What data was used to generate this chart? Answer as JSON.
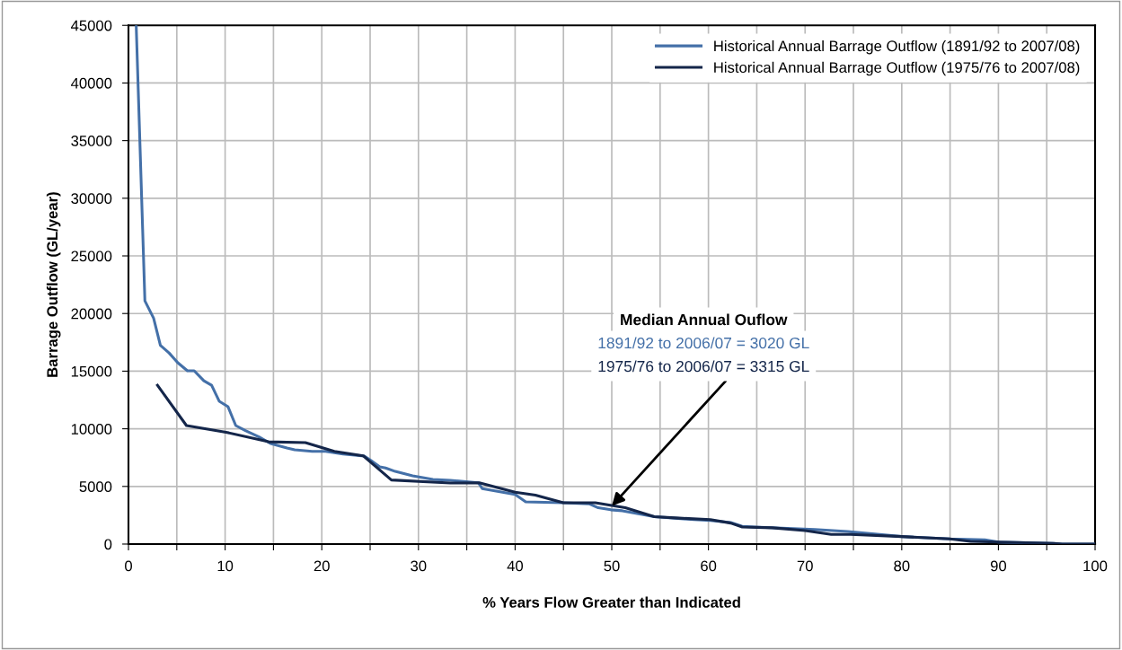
{
  "chart_data": {
    "type": "line",
    "xlabel": "% Years Flow Greater than Indicated",
    "ylabel": "Barrage Outflow (GL/year)",
    "series": [
      {
        "name": "Historical Annual Barrage Outflow (1891/92 to 2007/08)",
        "color": "#4470a8",
        "x": [
          0.8,
          1.7,
          2.6,
          3.3,
          4.2,
          5.1,
          6.1,
          6.8,
          7.8,
          8.6,
          9.4,
          10.3,
          11.1,
          12.1,
          13.5,
          14.7,
          16.4,
          17.2,
          19,
          20.4,
          22.2,
          24.4,
          25.1,
          26,
          26.6,
          27.6,
          29.4,
          31.5,
          33.3,
          36.2,
          36.6,
          40,
          41.1,
          45,
          47.7,
          48.6,
          49.9,
          51.1,
          54.4,
          58.5,
          60.2,
          62.3,
          63.5,
          64.8,
          71,
          74.4,
          80,
          85,
          88.6,
          90,
          95.7,
          96.6,
          100
        ],
        "values": [
          45000,
          21100,
          19600,
          17240,
          16580,
          15730,
          15030,
          15030,
          14170,
          13780,
          12380,
          11910,
          10280,
          9840,
          9300,
          8720,
          8330,
          8170,
          8040,
          8040,
          7800,
          7630,
          7240,
          6700,
          6600,
          6300,
          5920,
          5600,
          5530,
          5320,
          4810,
          4300,
          3660,
          3580,
          3480,
          3150,
          2970,
          2890,
          2380,
          2120,
          2050,
          1870,
          1540,
          1480,
          1270,
          1090,
          650,
          440,
          360,
          180,
          50,
          0,
          0
        ]
      },
      {
        "name": "Historical Annual Barrage Outflow (1975/76 to 2007/08)",
        "color": "#14264a",
        "x": [
          3.0,
          6.0,
          10.1,
          14.5,
          18.3,
          21.3,
          24.3,
          27.2,
          33.3,
          36.3,
          40,
          42.1,
          45,
          48.3,
          51.4,
          54.4,
          57,
          60.2,
          62.3,
          63.5,
          66.6,
          70,
          72.7,
          74.7,
          80,
          85,
          87.1,
          90,
          95.7,
          96.6,
          100
        ],
        "values": [
          13780,
          10280,
          9700,
          8870,
          8800,
          8040,
          7650,
          5560,
          5290,
          5320,
          4500,
          4250,
          3580,
          3580,
          3150,
          2380,
          2250,
          2120,
          1820,
          1480,
          1410,
          1170,
          830,
          830,
          650,
          440,
          230,
          180,
          50,
          0,
          0
        ]
      }
    ],
    "xlim": [
      0,
      100
    ],
    "xticks": [
      0,
      {
        "value": 5,
        "label": null
      },
      10,
      {
        "value": 15,
        "label": null
      },
      20,
      {
        "value": 25,
        "label": null
      },
      30,
      {
        "value": 35,
        "label": null
      },
      40,
      {
        "value": 45,
        "label": null
      },
      50,
      {
        "value": 55,
        "label": null
      },
      60,
      {
        "value": 65,
        "label": null
      },
      70,
      {
        "value": 75,
        "label": null
      },
      80,
      {
        "value": 85,
        "label": null
      },
      90,
      {
        "value": 95,
        "label": null
      },
      100
    ],
    "ylim": [
      0,
      45000
    ],
    "yticks": [
      0,
      5000,
      10000,
      15000,
      20000,
      25000,
      30000,
      35000,
      40000,
      45000
    ],
    "grid": true,
    "legend": "top right",
    "marker": "none",
    "line_style": "solid",
    "annotations": [
      "Median Annual Ouflow",
      "1891/92 to 2006/07 = 3020 GL",
      {
        "text": "1975/76 to 2006/07 = 3315 GL",
        "x": 50,
        "y": 3300
      }
    ]
  }
}
